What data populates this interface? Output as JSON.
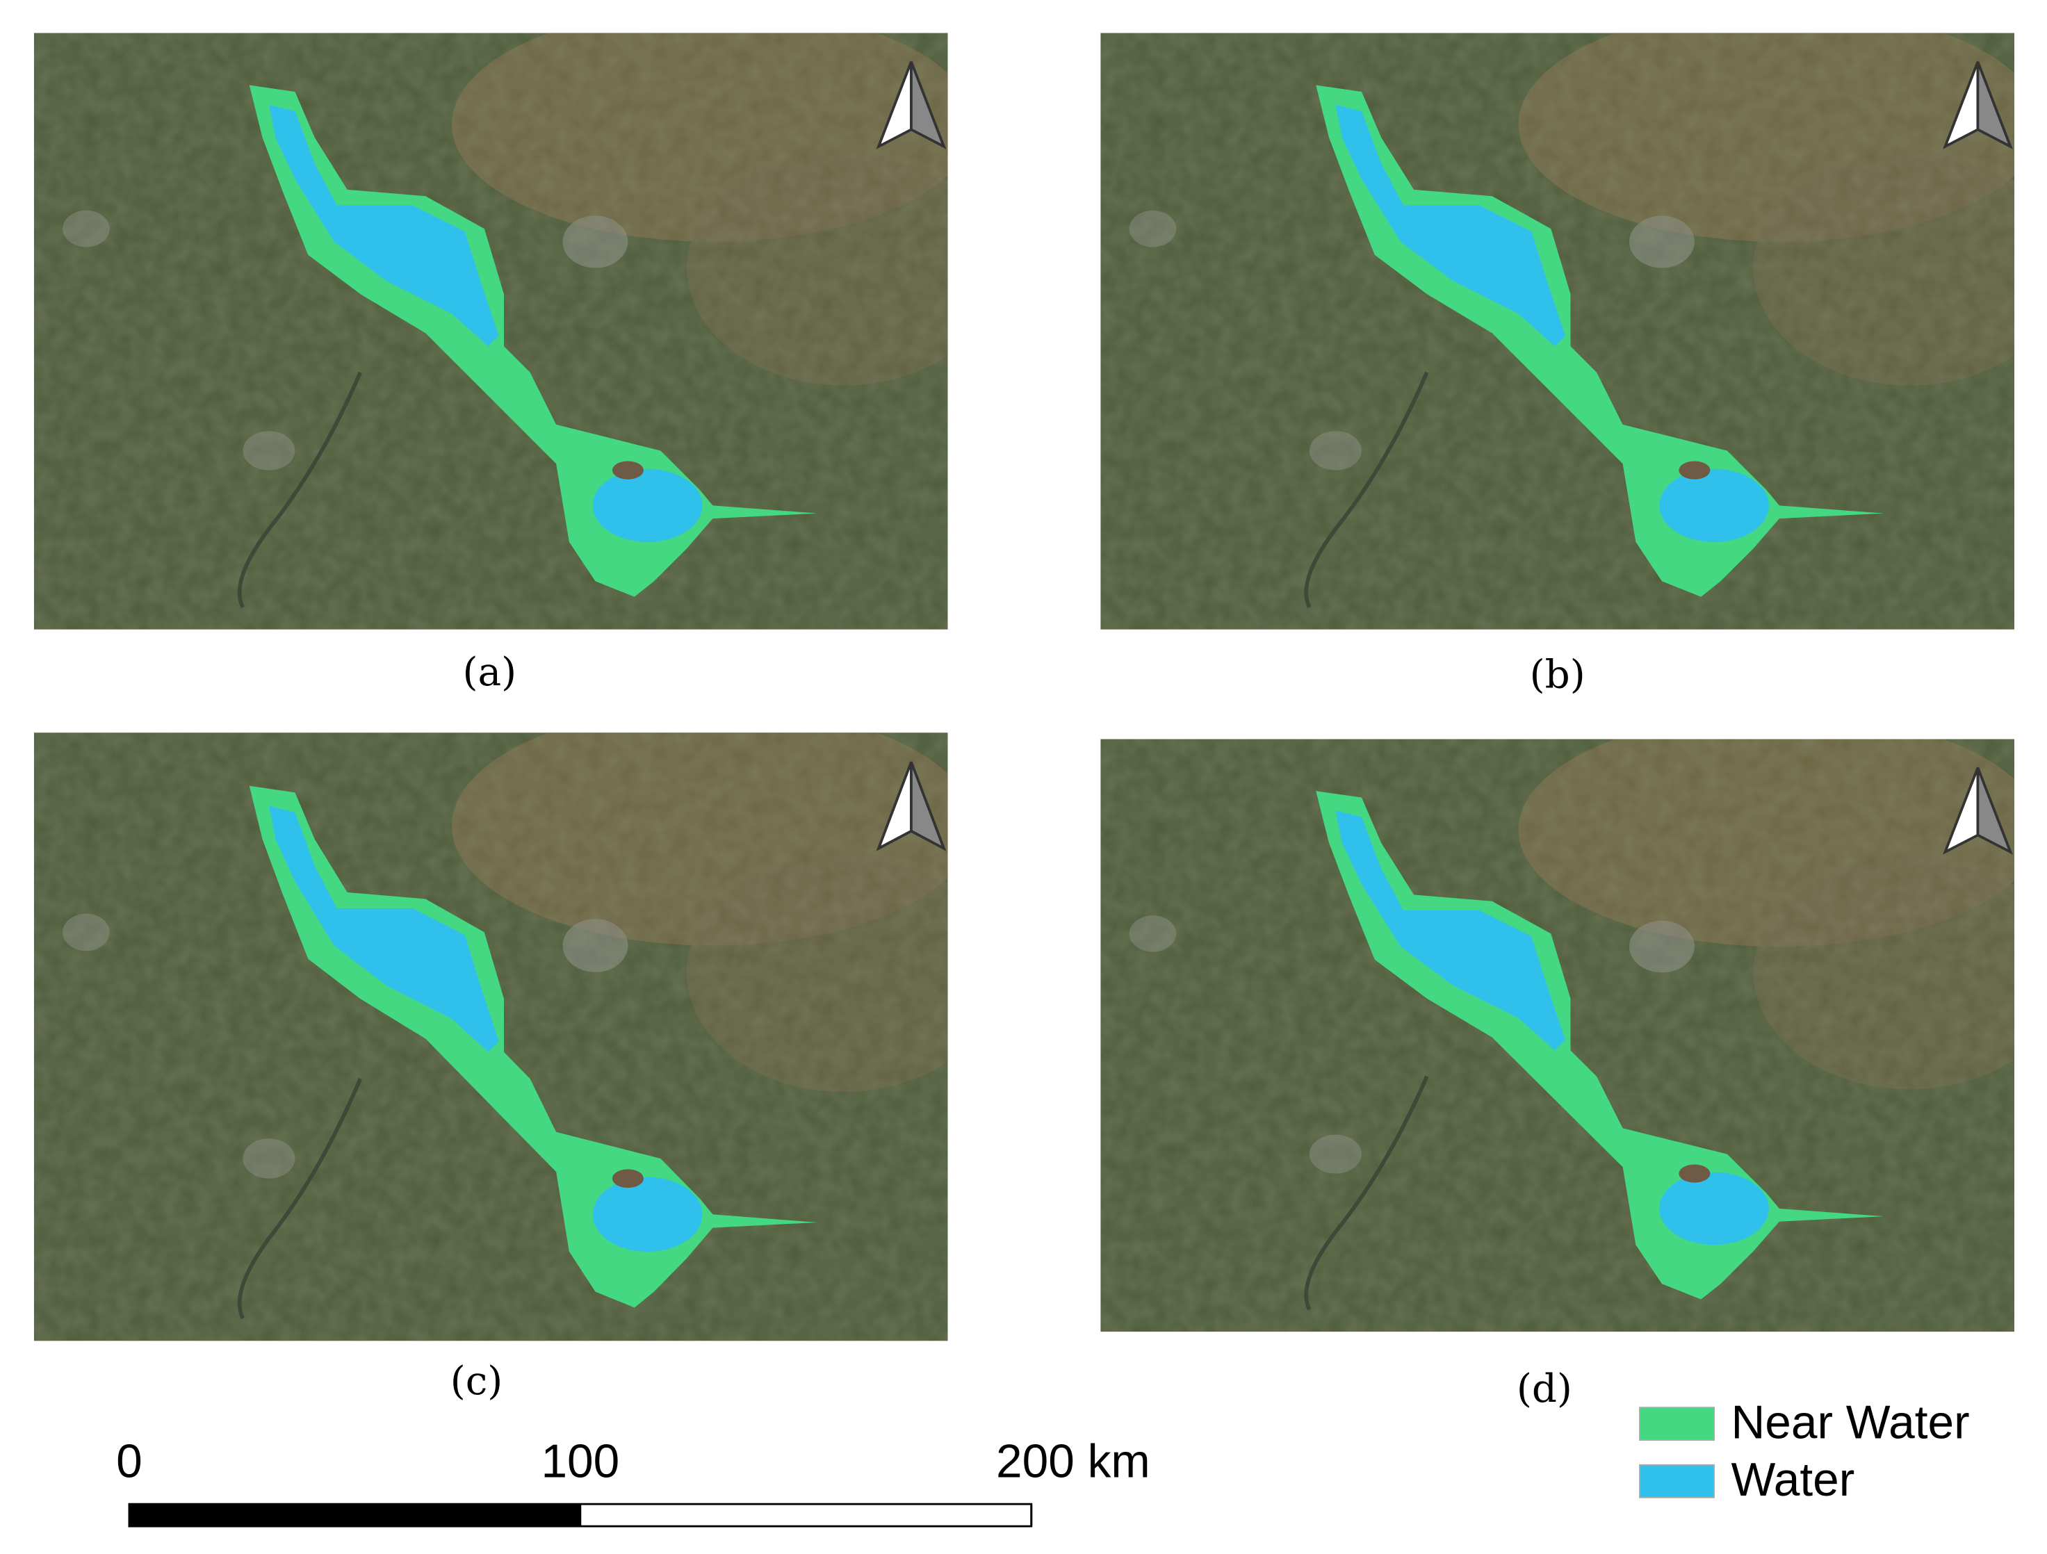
{
  "panels": [
    {
      "label": "(a)"
    },
    {
      "label": "(b)"
    },
    {
      "label": "(c)"
    },
    {
      "label": "(d)"
    }
  ],
  "legend": [
    {
      "name": "Near Water",
      "color": "#45d882"
    },
    {
      "name": "Water",
      "color": "#2fc1ec"
    }
  ],
  "scalebar": {
    "ticks": [
      0,
      100,
      {
        "value": 200,
        "label": "200 km"
      }
    ],
    "max": 200
  }
}
